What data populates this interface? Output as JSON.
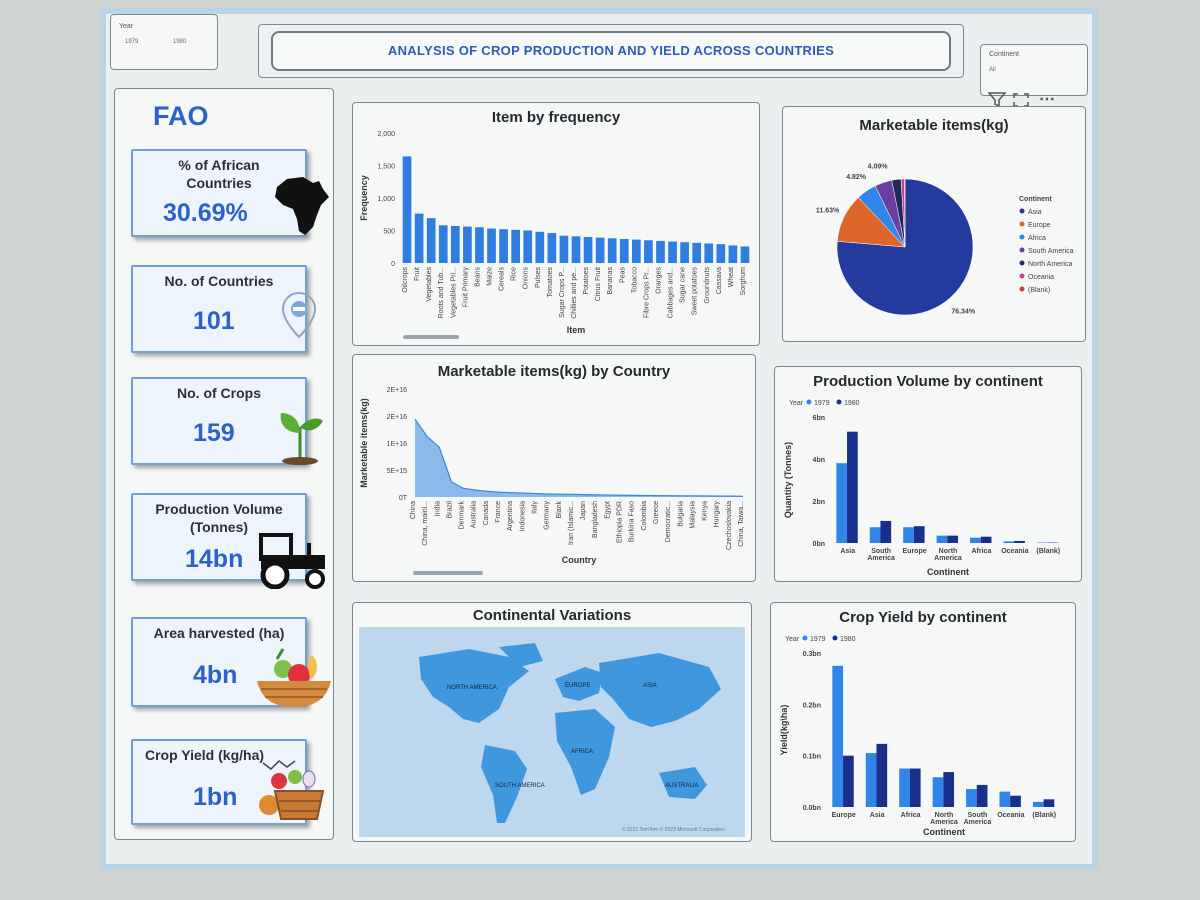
{
  "header": {
    "title": "ANALYSIS OF CROP PRODUCTION AND YIELD ACROSS COUNTRIES",
    "year_slicer": {
      "label": "Year",
      "start": "1979",
      "end": "1980"
    },
    "continent_slicer": {
      "label": "Continent",
      "value": "All"
    }
  },
  "sidebar": {
    "brand": "FAO",
    "kpis": [
      {
        "label": "% of African Countries",
        "value": "30.69%",
        "icon": "africa-icon"
      },
      {
        "label": "No. of Countries",
        "value": "101",
        "icon": "map-pin-icon"
      },
      {
        "label": "No. of Crops",
        "value": "159",
        "icon": "seedling-icon"
      },
      {
        "label": "Production Volume (Tonnes)",
        "value": "14bn",
        "icon": "tractor-icon"
      },
      {
        "label": "Area harvested (ha)",
        "value": "4bn",
        "icon": "fruit-basket-icon"
      },
      {
        "label": "Crop Yield (kg/ha)",
        "value": "1bn",
        "icon": "vegetable-basket-icon"
      }
    ]
  },
  "colors": {
    "accent": "#2b62c8",
    "bar": "#2f7de1",
    "dark": "#1a2f8c",
    "light": "#2f86e8"
  },
  "chart_data": [
    {
      "id": "item_frequency",
      "type": "bar",
      "title": "Item by frequency",
      "xlabel": "Item",
      "ylabel": "Frequency",
      "ylim": [
        0,
        2000
      ],
      "yticks": [
        "0",
        "500",
        "1,000",
        "1,500",
        "2,000"
      ],
      "categories": [
        "Oilcrops",
        "Fruit",
        "Vegetables",
        "Roots and Tub...",
        "Vegetables Pri...",
        "Fruit Primary",
        "Beans",
        "Maize",
        "Cereals",
        "Rice",
        "Onions",
        "Pulses",
        "Tomatoes",
        "Sugar Crops P...",
        "Chillies and pe...",
        "Potatoes",
        "Citrus Fruit",
        "Bananas",
        "Peas",
        "Tobacco",
        "Fibre Crops Pr...",
        "Oranges",
        "Cabbages and...",
        "Sugar cane",
        "Sweet potatoes",
        "Groundnuts",
        "Cassava",
        "Wheat",
        "Sorghum"
      ],
      "values": [
        1640,
        760,
        690,
        580,
        570,
        560,
        550,
        530,
        520,
        510,
        500,
        480,
        460,
        420,
        410,
        400,
        390,
        380,
        370,
        360,
        350,
        340,
        330,
        320,
        310,
        300,
        290,
        270,
        255
      ]
    },
    {
      "id": "marketable_pie",
      "type": "pie",
      "title": "Marketable items(kg)",
      "legend_title": "Continent",
      "legend": "right",
      "slices": [
        {
          "label": "Asia",
          "value": 76.34,
          "pct_label": "76.34%",
          "color": "#243a9c"
        },
        {
          "label": "Europe",
          "value": 11.63,
          "pct_label": "11.63%",
          "color": "#e0652a"
        },
        {
          "label": "Africa",
          "value": 4.82,
          "pct_label": "4.82%",
          "color": "#2f86e8"
        },
        {
          "label": "South America",
          "value": 4.09,
          "pct_label": "4.09%",
          "color": "#6a3fa0"
        },
        {
          "label": "North America",
          "value": 2.2,
          "pct_label": "",
          "color": "#1c2a5e"
        },
        {
          "label": "Oceania",
          "value": 0.8,
          "pct_label": "",
          "color": "#d63a83"
        },
        {
          "label": "(Blank)",
          "value": 0.12,
          "pct_label": "",
          "color": "#d9363e"
        }
      ]
    },
    {
      "id": "marketable_by_country",
      "type": "area",
      "title": "Marketable items(kg) by Country",
      "xlabel": "Country",
      "ylabel": "Marketable items(kg)",
      "ylim": [
        0,
        2.5e+16
      ],
      "yticks": [
        "0T",
        "5E+15",
        "1E+16",
        "2E+16",
        "2E+16"
      ],
      "categories": [
        "China",
        "China, mainl...",
        "India",
        "Brazil",
        "Denmark",
        "Australia",
        "Canada",
        "France",
        "Argentina",
        "Indonesia",
        "Italy",
        "Germany",
        "Blank",
        "Iran (Islamic...",
        "Japan",
        "Bangladesh",
        "Egypt",
        "Ethiopia PDR",
        "Burkina Faso",
        "Colombia",
        "Greece",
        "Democratic...",
        "Bulgaria",
        "Malaysia",
        "Kenya",
        "Hungary",
        "Czechoslovakia",
        "China, Taiwa..."
      ],
      "values": [
        1.8e+16,
        1.4e+16,
        1.15e+16,
        3500000000000000.0,
        2000000000000000.0,
        1600000000000000.0,
        1300000000000000.0,
        1100000000000000.0,
        1000000000000000.0,
        900000000000000.0,
        800000000000000.0,
        700000000000000.0,
        650000000000000.0,
        600000000000000.0,
        550000000000000.0,
        500000000000000.0,
        450000000000000.0,
        400000000000000.0,
        380000000000000.0,
        350000000000000.0,
        320000000000000.0,
        300000000000000.0,
        280000000000000.0,
        260000000000000.0,
        240000000000000.0,
        220000000000000.0,
        200000000000000.0,
        180000000000000.0
      ]
    },
    {
      "id": "production_by_continent",
      "type": "bar",
      "title": "Production Volume by continent",
      "xlabel": "Continent",
      "ylabel": "Quantity (Tonnes)",
      "legend_title": "Year",
      "ylim": [
        0,
        6
      ],
      "yticks": [
        "0bn",
        "2bn",
        "4bn",
        "6bn"
      ],
      "categories": [
        "Asia",
        "South America",
        "Europe",
        "North America",
        "Africa",
        "Oceania",
        "(Blank)"
      ],
      "series": [
        {
          "name": "1979",
          "color": "#2f86e8",
          "values": [
            3.8,
            0.75,
            0.75,
            0.35,
            0.25,
            0.08,
            0.02
          ]
        },
        {
          "name": "1980",
          "color": "#1a2f8c",
          "values": [
            5.3,
            1.05,
            0.8,
            0.35,
            0.3,
            0.1,
            0.02
          ]
        }
      ]
    },
    {
      "id": "yield_by_continent",
      "type": "bar",
      "title": "Crop Yield by continent",
      "xlabel": "Continent",
      "ylabel": "Yield(kg\\ha)",
      "legend_title": "Year",
      "ylim": [
        0,
        0.3
      ],
      "yticks": [
        "0.0bn",
        "0.1bn",
        "0.2bn",
        "0.3bn"
      ],
      "categories": [
        "Europe",
        "Asia",
        "Africa",
        "North America",
        "South America",
        "Oceania",
        "(Blank)"
      ],
      "series": [
        {
          "name": "1979",
          "color": "#2f86e8",
          "values": [
            0.275,
            0.105,
            0.075,
            0.058,
            0.035,
            0.03,
            0.01
          ]
        },
        {
          "name": "1980",
          "color": "#1a2f8c",
          "values": [
            0.1,
            0.123,
            0.075,
            0.068,
            0.043,
            0.022,
            0.015
          ]
        }
      ]
    }
  ],
  "map": {
    "title": "Continental Variations",
    "labels": [
      "NORTH AMERICA",
      "SOUTH AMERICA",
      "EUROPE",
      "AFRICA",
      "ASIA",
      "AUSTRALIA"
    ],
    "credit": "© 2023 TomTom © 2023 Microsoft Corporation"
  }
}
